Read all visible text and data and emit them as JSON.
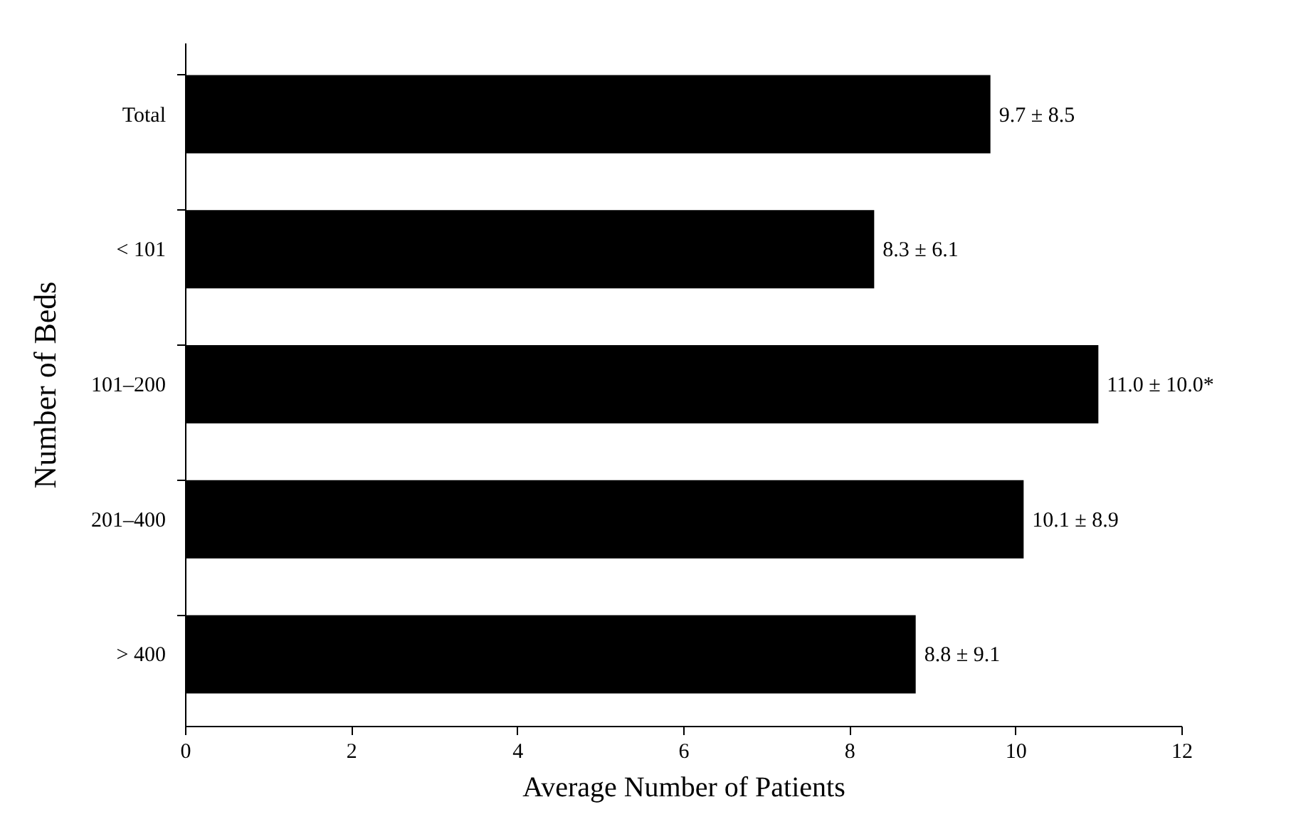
{
  "chart_data": {
    "type": "bar",
    "orientation": "horizontal",
    "xlabel": "Average Number of Patients",
    "ylabel": "Number of Beds",
    "categories": [
      "Total",
      "< 101",
      "101–200",
      "201–400",
      "> 400"
    ],
    "values": [
      9.7,
      8.3,
      11.0,
      10.1,
      8.8
    ],
    "value_labels": [
      "9.7 ± 8.5",
      "8.3 ± 6.1",
      "11.0 ± 10.0*",
      "10.1 ± 8.9",
      "8.8 ± 9.1"
    ],
    "color": "#000000",
    "xlim": [
      0,
      12
    ],
    "xticks": [
      0,
      2,
      4,
      6,
      8,
      10,
      12
    ],
    "grid": false
  }
}
